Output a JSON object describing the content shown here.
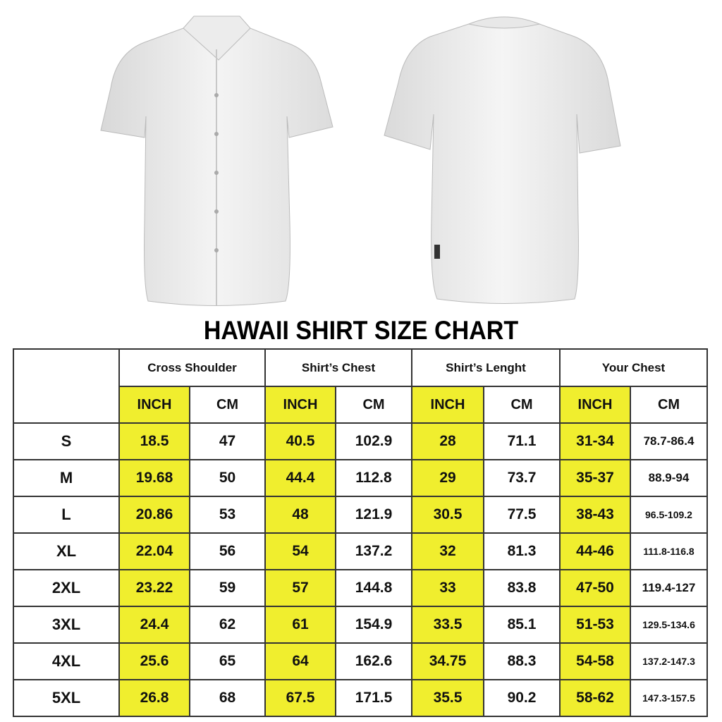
{
  "title": "HAWAII SHIRT SIZE CHART",
  "colors": {
    "highlight": "#f0ee2e",
    "border": "#333333"
  },
  "groups": [
    "Cross Shoulder",
    "Shirt’s Chest",
    "Shirt’s Lenght",
    "Your Chest"
  ],
  "units": [
    "INCH",
    "CM",
    "INCH",
    "CM",
    "INCH",
    "CM",
    "INCH",
    "CM"
  ],
  "rows": [
    {
      "size": "S",
      "cells": [
        "18.5",
        "47",
        "40.5",
        "102.9",
        "28",
        "71.1",
        "31-34",
        "78.7-86.4"
      ]
    },
    {
      "size": "M",
      "cells": [
        "19.68",
        "50",
        "44.4",
        "112.8",
        "29",
        "73.7",
        "35-37",
        "88.9-94"
      ]
    },
    {
      "size": "L",
      "cells": [
        "20.86",
        "53",
        "48",
        "121.9",
        "30.5",
        "77.5",
        "38-43",
        "96.5-109.2"
      ]
    },
    {
      "size": "XL",
      "cells": [
        "22.04",
        "56",
        "54",
        "137.2",
        "32",
        "81.3",
        "44-46",
        "111.8-116.8"
      ]
    },
    {
      "size": "2XL",
      "cells": [
        "23.22",
        "59",
        "57",
        "144.8",
        "33",
        "83.8",
        "47-50",
        "119.4-127"
      ]
    },
    {
      "size": "3XL",
      "cells": [
        "24.4",
        "62",
        "61",
        "154.9",
        "33.5",
        "85.1",
        "51-53",
        "129.5-134.6"
      ]
    },
    {
      "size": "4XL",
      "cells": [
        "25.6",
        "65",
        "64",
        "162.6",
        "34.75",
        "88.3",
        "54-58",
        "137.2-147.3"
      ]
    },
    {
      "size": "5XL",
      "cells": [
        "26.8",
        "68",
        "67.5",
        "171.5",
        "35.5",
        "90.2",
        "58-62",
        "147.3-157.5"
      ]
    }
  ],
  "images": [
    "shirt-front",
    "shirt-back"
  ]
}
